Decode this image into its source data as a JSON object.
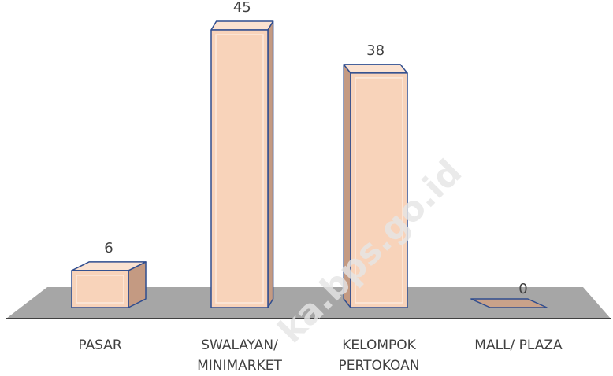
{
  "chart_data": {
    "type": "bar3d",
    "categories": [
      "PASAR",
      "SWALAYAN/\nMINIMARKET",
      "KELOMPOK\nPERTOKOAN",
      "MALL/ PLAZA"
    ],
    "values": [
      6,
      45,
      38,
      0
    ],
    "color": "#f8d3ba",
    "edge_color": "#2f4d8f",
    "watermark": "ka.bps.go.id"
  }
}
